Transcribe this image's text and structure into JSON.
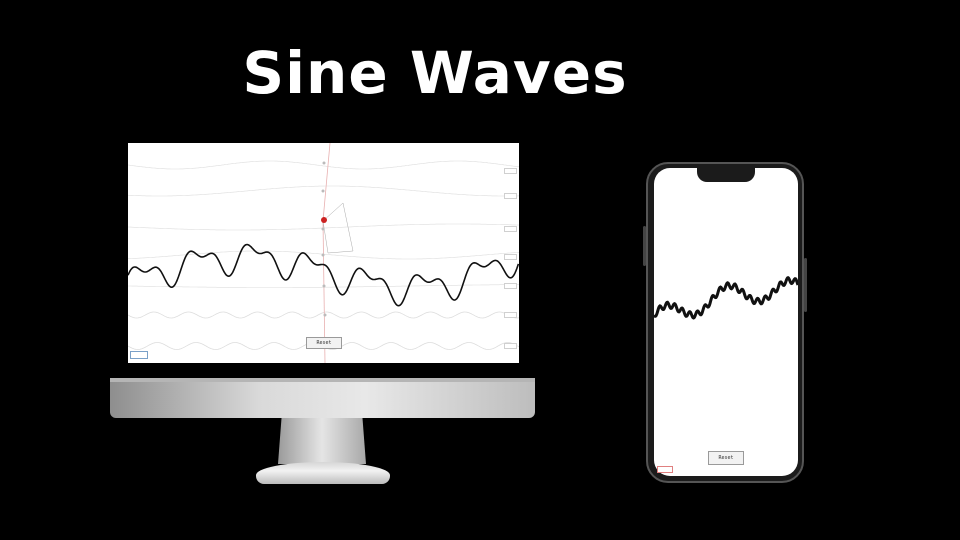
{
  "title": "Sine Waves",
  "desktop": {
    "reset_label": "Reset",
    "corner_label": "",
    "tag_labels": [
      "",
      "",
      "",
      "",
      "",
      "",
      ""
    ]
  },
  "mobile": {
    "reset_label": "Reset",
    "corner_label": ""
  },
  "colors": {
    "background": "#000000",
    "wave": "#111111",
    "guide_line": "#dddddd",
    "marker": "#cc2222"
  }
}
